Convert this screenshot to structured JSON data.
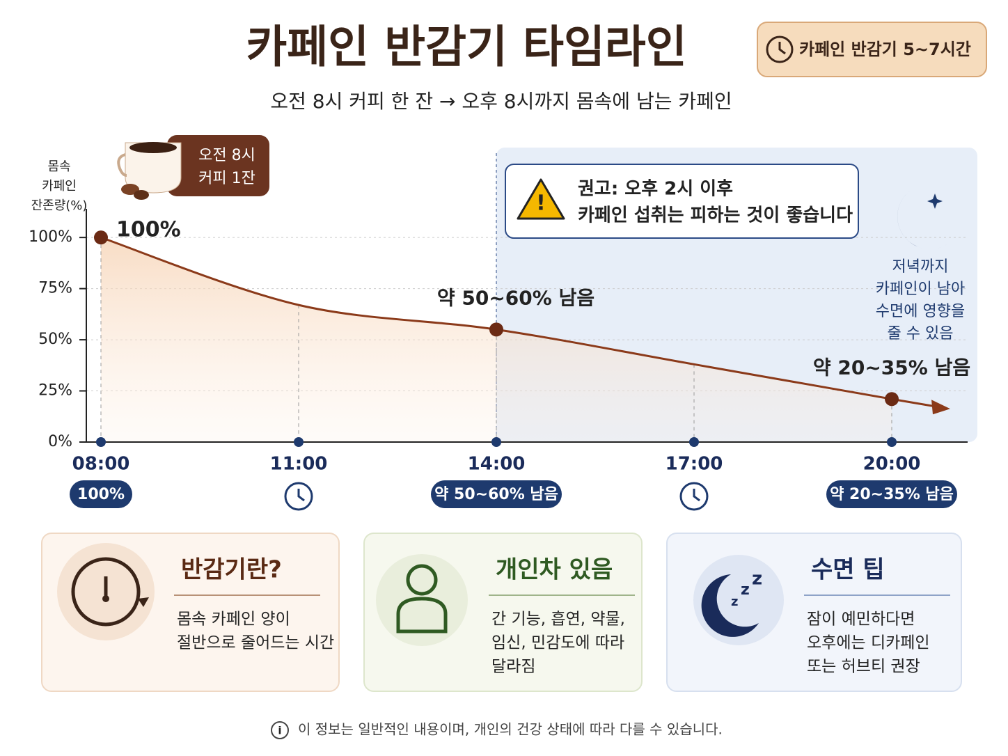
{
  "header": {
    "title": "카페인 반감기 타임라인",
    "badge": "카페인 반감기 5~7시간",
    "subtitle": "오전 8시 커피 한 잔 → 오후 8시까지 몸속에 남는 카페인"
  },
  "chart_data": {
    "type": "line",
    "y_label": "몸속 카페인 잔존량(%)",
    "categories": [
      "08:00",
      "11:00",
      "14:00",
      "17:00",
      "20:00"
    ],
    "values": [
      100,
      67,
      55,
      38,
      21
    ],
    "value_labels": [
      "100%",
      null,
      "약 50~60% 남음",
      null,
      "약 20~35% 남음"
    ],
    "color": "#8b3a1a",
    "ylim": [
      0,
      114
    ],
    "yticks": [
      {
        "value": 0,
        "label": "0%"
      },
      {
        "value": 25,
        "label": "25%"
      },
      {
        "value": 50,
        "label": "50%"
      },
      {
        "value": 75,
        "label": "75%"
      },
      {
        "value": 100,
        "label": "100%"
      }
    ],
    "grid": true,
    "annotations": {
      "coffee": [
        "오전 8시",
        "커피 1잔"
      ],
      "warning": [
        "권고: 오후 2시 이후",
        "카페인 섭취는 피하는 것이 좋습니다"
      ],
      "night": [
        "저녁까지",
        "카페인이 남아",
        "수면에 영향을",
        "줄 수 있음"
      ]
    }
  },
  "cards": [
    {
      "title": "반감기란?",
      "lines": [
        "몸속 카페인 양이",
        "절반으로 줄어드는 시간"
      ]
    },
    {
      "title": "개인차 있음",
      "lines": [
        "간 기능, 흡연, 약물,",
        "임신, 민감도에 따라",
        "달라짐"
      ]
    },
    {
      "title": "수면 팁",
      "lines": [
        "잠이 예민하다면",
        "오후에는 디카페인",
        "또는 허브티 권장"
      ]
    }
  ],
  "footer": "이 정보는 일반적인 내용이며, 개인의 건강 상태에 따라 다를 수 있습니다."
}
